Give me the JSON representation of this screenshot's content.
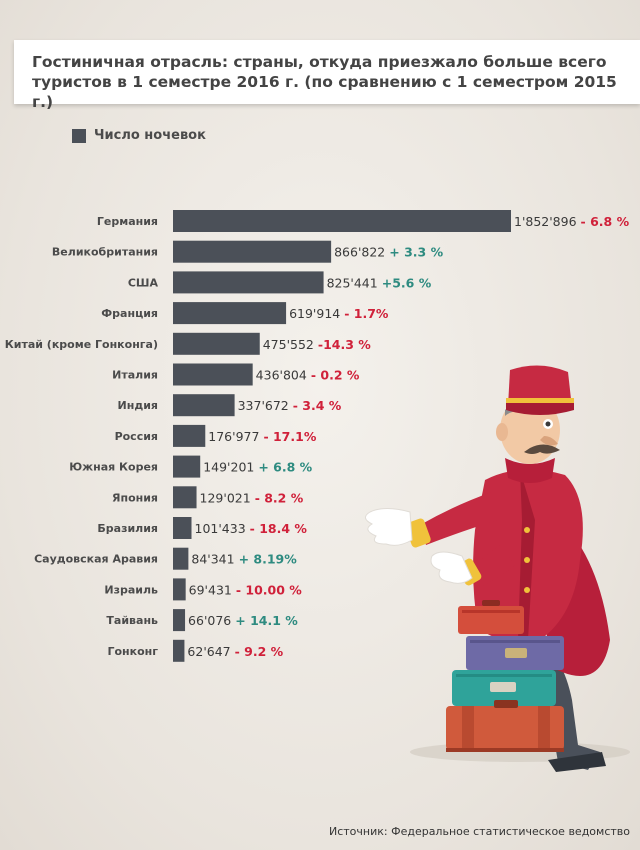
{
  "title": "Гостиничная отрасль: страны, откуда приезжало больше всего туристов в 1 семестре 2016 г. (по сравнению с  1 семестром 2015 г.)",
  "source": "Источник: Федеральное статистическое ведомство",
  "colors": {
    "bar": "#4b5058",
    "positive": "#2e8b80",
    "negative": "#d0213a"
  },
  "chart_data": {
    "type": "bar",
    "orientation": "horizontal",
    "legend": "Число ночевок",
    "legend_position": "top-left",
    "grid": false,
    "categories": [
      "Германия",
      "Великобритания",
      "США",
      "Франция",
      "Китай (кроме Гонконга)",
      "Италия",
      "Индия",
      "Россия",
      "Южная Корея",
      "Япония",
      "Бразилия",
      "Саудовская Аравия",
      "Израиль",
      "Тайвань",
      "Гонконг"
    ],
    "values": [
      1852896,
      866822,
      825441,
      619914,
      475552,
      436804,
      337672,
      176977,
      149201,
      129021,
      101433,
      84341,
      69431,
      66076,
      62647
    ],
    "value_labels": [
      "1'852'896",
      "866'822",
      "825'441",
      "619'914",
      "475'552",
      "436'804",
      "337'672",
      "176'977",
      "149'201",
      "129'021",
      "101'433",
      "84'341",
      "69'431",
      "66'076",
      "62'647"
    ],
    "changes": [
      "- 6.8 %",
      "+ 3.3 %",
      "+5.6 %",
      "- 1.7%",
      "-14.3 %",
      "- 0.2 %",
      "- 3.4 %",
      "- 17.1%",
      "+ 6.8 %",
      "- 8.2 %",
      "- 18.4 %",
      "+ 8.19%",
      "- 10.00 %",
      "+ 14.1 %",
      "- 9.2 %"
    ],
    "change_direction": [
      "down",
      "up",
      "up",
      "down",
      "down",
      "down",
      "down",
      "down",
      "up",
      "down",
      "down",
      "up",
      "down",
      "up",
      "down"
    ],
    "xlim": [
      0,
      1852896
    ]
  }
}
